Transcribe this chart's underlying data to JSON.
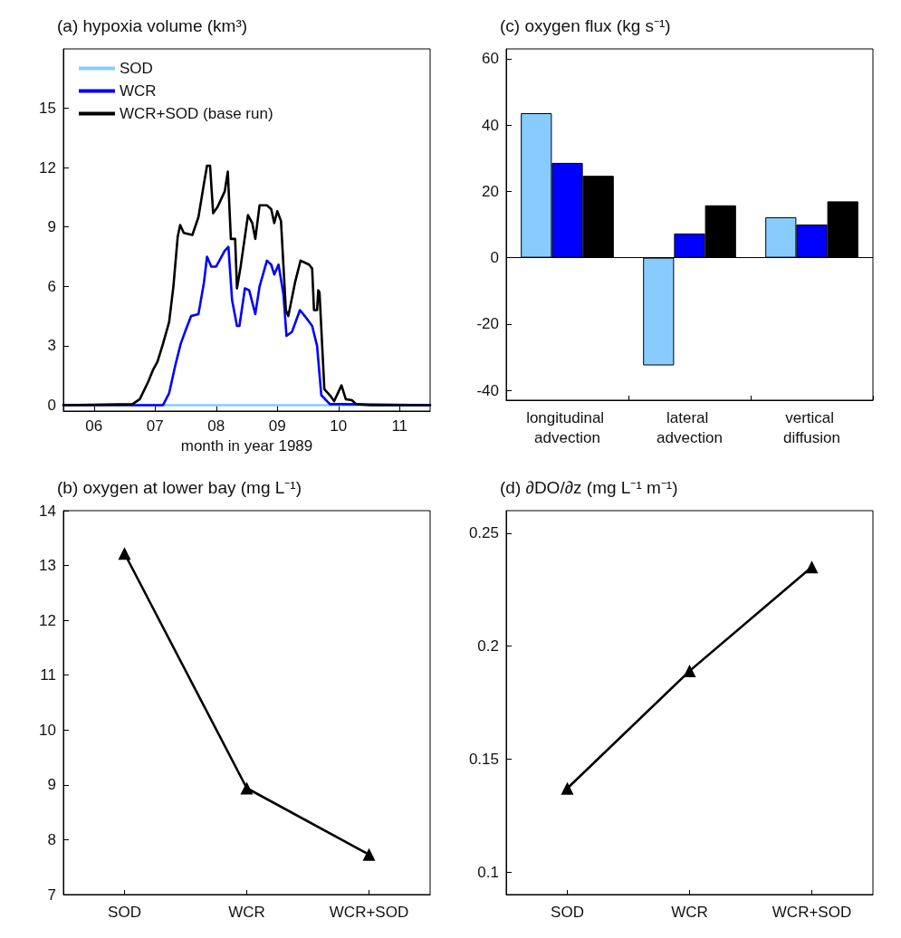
{
  "chart_data": [
    {
      "type": "line",
      "title": "(a) hypoxia volume (km³)",
      "xlabel": "month in year 1989",
      "xlim": [
        5.5,
        11.5
      ],
      "xticks": [
        {
          "value": 6,
          "label": "06"
        },
        {
          "value": 7,
          "label": "07"
        },
        {
          "value": 8,
          "label": "08"
        },
        {
          "value": 9,
          "label": "09"
        },
        {
          "value": 10,
          "label": "10"
        },
        {
          "value": 11,
          "label": "11"
        }
      ],
      "ylim": [
        -0.3,
        18
      ],
      "yticks": [
        0,
        3,
        6,
        9,
        12,
        15
      ],
      "legend": "top left",
      "marker": "none",
      "line_style": "solid",
      "series": [
        {
          "name": "SOD",
          "color": "#88ccff",
          "x": [
            5.5,
            11.5
          ],
          "values": [
            0,
            0
          ]
        },
        {
          "name": "WCR",
          "color": "#0000ff",
          "x": [
            5.5,
            7.13,
            7.23,
            7.33,
            7.42,
            7.49,
            7.59,
            7.71,
            7.8,
            7.85,
            7.92,
            8.0,
            8.14,
            8.2,
            8.26,
            8.34,
            8.38,
            8.47,
            8.54,
            8.64,
            8.71,
            8.83,
            8.9,
            8.95,
            9.02,
            9.1,
            9.15,
            9.24,
            9.37,
            9.45,
            9.57,
            9.65,
            9.72,
            9.86,
            10.05,
            11.5
          ],
          "values": [
            0,
            0,
            0.6,
            2.0,
            3.1,
            3.7,
            4.5,
            4.6,
            6.2,
            7.5,
            7.0,
            7.0,
            7.8,
            8.0,
            5.3,
            4.0,
            4.0,
            5.9,
            5.8,
            4.6,
            6.0,
            7.3,
            7.1,
            6.6,
            7.1,
            5.6,
            3.5,
            3.7,
            4.8,
            4.5,
            4.0,
            3.0,
            0.5,
            0.05,
            0.05,
            0
          ]
        },
        {
          "name": "WCR+SOD (base run)",
          "color": "#000000",
          "x": [
            5.5,
            6.63,
            6.75,
            6.89,
            6.97,
            7.04,
            7.13,
            7.23,
            7.3,
            7.37,
            7.41,
            7.47,
            7.61,
            7.71,
            7.8,
            7.85,
            7.9,
            7.95,
            8.02,
            8.14,
            8.19,
            8.24,
            8.31,
            8.34,
            8.4,
            8.52,
            8.59,
            8.64,
            8.71,
            8.83,
            8.9,
            8.95,
            9.0,
            9.06,
            9.14,
            9.18,
            9.29,
            9.38,
            9.52,
            9.57,
            9.6,
            9.65,
            9.67,
            9.69,
            9.77,
            9.86,
            9.93,
            10.05,
            10.12,
            10.22,
            10.29,
            10.53,
            11.5
          ],
          "values": [
            0,
            0.05,
            0.3,
            1.2,
            1.8,
            2.2,
            3.1,
            4.2,
            6.0,
            8.5,
            9.1,
            8.7,
            8.6,
            9.5,
            11.2,
            12.1,
            12.1,
            9.7,
            10.0,
            10.8,
            11.8,
            8.4,
            8.4,
            5.9,
            7.0,
            9.6,
            9.2,
            8.4,
            10.1,
            10.1,
            9.9,
            9.2,
            9.8,
            9.3,
            4.8,
            4.5,
            6.2,
            7.3,
            7.1,
            6.9,
            4.8,
            4.8,
            5.8,
            5.7,
            0.8,
            0.5,
            0.2,
            1.0,
            0.3,
            0.25,
            0.05,
            0,
            0
          ]
        }
      ]
    },
    {
      "type": "bar",
      "title": "(c) oxygen flux (kg s⁻¹)",
      "categories": [
        "longitudinal advection",
        "lateral advection",
        "vertical diffusion"
      ],
      "ylim": [
        -43,
        63
      ],
      "yticks": [
        -40,
        -20,
        0,
        20,
        40,
        60
      ],
      "ref_lines": [
        {
          "axis": "y",
          "value": 0,
          "color": "#000000"
        }
      ],
      "series": [
        {
          "color": "#88ccff",
          "values": [
            43.6,
            -32.5,
            12.2
          ]
        },
        {
          "color": "#0000ff",
          "values": [
            28.6,
            7.3,
            10.0
          ]
        },
        {
          "color": "#000000",
          "values": [
            24.7,
            15.8,
            17.0
          ]
        }
      ]
    },
    {
      "type": "line",
      "title": "(b) oxygen at lower bay (mg L⁻¹)",
      "categories": [
        "SOD",
        "WCR",
        "WCR+SOD"
      ],
      "ylim": [
        7,
        14
      ],
      "yticks": [
        7,
        8,
        9,
        10,
        11,
        12,
        13,
        14
      ],
      "marker": "triangle",
      "line_style": "solid",
      "series": [
        {
          "color": "#000000",
          "values": [
            13.22,
            8.94,
            7.73
          ]
        }
      ]
    },
    {
      "type": "line",
      "title": "(d) ∂DO/∂z (mg L⁻¹ m⁻¹)",
      "categories": [
        "SOD",
        "WCR",
        "WCR+SOD"
      ],
      "ylim": [
        0.09,
        0.26
      ],
      "yticks": [
        0.1,
        0.15,
        0.2,
        0.25
      ],
      "marker": "triangle",
      "line_style": "solid",
      "series": [
        {
          "color": "#000000",
          "values": [
            0.137,
            0.189,
            0.235
          ]
        }
      ]
    }
  ]
}
